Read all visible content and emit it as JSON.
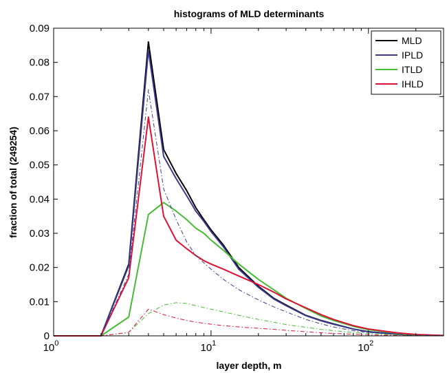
{
  "chart_data": {
    "type": "line",
    "title": "histograms of MLD determinants",
    "xlabel": "layer depth, m",
    "ylabel": "fraction of total (249254)",
    "xscale": "log",
    "xlim": [
      1,
      300
    ],
    "ylim": [
      0,
      0.09
    ],
    "x_ticks": [
      {
        "value": 1,
        "base": "10",
        "exp": "0"
      },
      {
        "value": 10,
        "base": "10",
        "exp": "1"
      },
      {
        "value": 100,
        "base": "10",
        "exp": "2"
      }
    ],
    "y_ticks": [
      "0",
      "0.01",
      "0.02",
      "0.03",
      "0.04",
      "0.05",
      "0.06",
      "0.07",
      "0.08",
      "0.09"
    ],
    "grid": false,
    "legend_position": "top-right",
    "series": [
      {
        "name": "MLD",
        "color": "#000000",
        "dash": "solid",
        "in_legend": true,
        "x": [
          1,
          2,
          3,
          4,
          5,
          6,
          7,
          8,
          9,
          10,
          12,
          15,
          20,
          25,
          30,
          40,
          50,
          60,
          80,
          100,
          150,
          200,
          300
        ],
        "y": [
          0,
          0,
          0.021,
          0.086,
          0.0545,
          0.0475,
          0.0425,
          0.0375,
          0.034,
          0.031,
          0.0265,
          0.02,
          0.0145,
          0.011,
          0.009,
          0.006,
          0.0045,
          0.0035,
          0.002,
          0.0012,
          0.0005,
          0.0002,
          0.0001
        ]
      },
      {
        "name": "IPLD",
        "color": "#3a3a8c",
        "dash": "solid",
        "in_legend": true,
        "x": [
          1,
          2,
          3,
          4,
          5,
          6,
          7,
          8,
          9,
          10,
          12,
          15,
          20,
          25,
          30,
          40,
          50,
          60,
          80,
          100,
          150,
          200,
          300
        ],
        "y": [
          0,
          0,
          0.0205,
          0.0835,
          0.0525,
          0.046,
          0.041,
          0.0365,
          0.0335,
          0.0305,
          0.026,
          0.0195,
          0.0142,
          0.0108,
          0.0088,
          0.0059,
          0.0044,
          0.0034,
          0.002,
          0.0012,
          0.0005,
          0.0002,
          0.0001
        ]
      },
      {
        "name": "ITLD",
        "color": "#44bb33",
        "dash": "solid",
        "in_legend": true,
        "x": [
          1,
          2,
          3,
          4,
          5,
          6,
          7,
          8,
          9,
          10,
          12,
          15,
          20,
          25,
          30,
          40,
          50,
          60,
          80,
          100,
          150,
          200,
          300
        ],
        "y": [
          0,
          0,
          0.0055,
          0.0355,
          0.039,
          0.0365,
          0.034,
          0.0315,
          0.03,
          0.028,
          0.025,
          0.021,
          0.0165,
          0.0135,
          0.011,
          0.008,
          0.0058,
          0.0045,
          0.0028,
          0.0018,
          0.0008,
          0.0003,
          0.0001
        ]
      },
      {
        "name": "IHLD",
        "color": "#dd1133",
        "dash": "solid",
        "in_legend": true,
        "x": [
          1,
          2,
          3,
          4,
          5,
          6,
          7,
          8,
          9,
          10,
          12,
          15,
          20,
          25,
          30,
          40,
          50,
          60,
          80,
          100,
          150,
          200,
          300
        ],
        "y": [
          0,
          0,
          0.017,
          0.064,
          0.035,
          0.028,
          0.0255,
          0.0235,
          0.022,
          0.021,
          0.0195,
          0.0175,
          0.015,
          0.0128,
          0.0108,
          0.0082,
          0.0062,
          0.0048,
          0.003,
          0.002,
          0.0009,
          0.0004,
          0.0001
        ]
      },
      {
        "name": "",
        "color": "#3a3a8c",
        "dash": "dashdot",
        "in_legend": false,
        "x": [
          1,
          2,
          3,
          4,
          5,
          6,
          7,
          8,
          10,
          12,
          15,
          20,
          25,
          30,
          40,
          50,
          60,
          80,
          100,
          150,
          200,
          300
        ],
        "y": [
          0,
          0,
          0.018,
          0.072,
          0.043,
          0.034,
          0.0275,
          0.0235,
          0.0195,
          0.0165,
          0.0135,
          0.0105,
          0.0085,
          0.007,
          0.0048,
          0.0035,
          0.0026,
          0.0015,
          0.001,
          0.0004,
          0.0002,
          0.0001
        ]
      },
      {
        "name": "",
        "color": "#44bb33",
        "dash": "dashdot",
        "in_legend": false,
        "x": [
          1,
          2,
          3,
          4,
          5,
          6,
          7,
          8,
          10,
          12,
          15,
          20,
          25,
          30,
          40,
          50,
          60,
          80,
          100,
          150,
          200,
          300
        ],
        "y": [
          0,
          0,
          0.001,
          0.0065,
          0.009,
          0.0097,
          0.0095,
          0.0088,
          0.0078,
          0.007,
          0.006,
          0.0048,
          0.004,
          0.0033,
          0.0025,
          0.0019,
          0.0015,
          0.001,
          0.0007,
          0.0003,
          0.0001,
          0
        ]
      },
      {
        "name": "",
        "color": "#dd1133",
        "dash": "dashdot",
        "in_legend": false,
        "x": [
          1,
          2,
          3,
          4,
          5,
          6,
          7,
          8,
          10,
          12,
          15,
          20,
          25,
          30,
          40,
          50,
          60,
          80,
          100,
          150,
          200,
          300
        ],
        "y": [
          0,
          0,
          0.001,
          0.0078,
          0.0062,
          0.0052,
          0.0045,
          0.004,
          0.0034,
          0.003,
          0.0026,
          0.0022,
          0.0019,
          0.0016,
          0.0012,
          0.0009,
          0.0007,
          0.0005,
          0.0003,
          0.0001,
          0,
          0
        ]
      }
    ]
  }
}
